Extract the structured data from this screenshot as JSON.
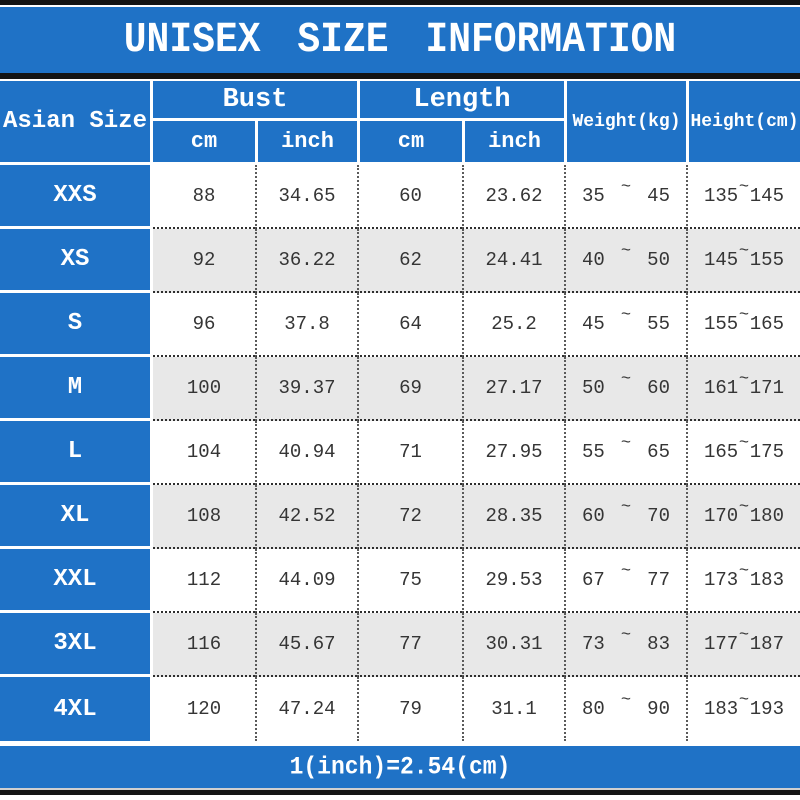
{
  "title": "UNISEX SIZE INFORMATION",
  "footer": {
    "note": "1(inch)=2.54(cm)"
  },
  "colors": {
    "blue": "#1f72c6",
    "alt_row": "#e8e8e8",
    "bar": "#141414",
    "text": "#353535",
    "white": "#ffffff"
  },
  "table": {
    "tilde": "~",
    "headers": {
      "size": "Asian Size",
      "bust": "Bust",
      "length": "Length",
      "weight": "Weight(kg)",
      "height": "Height(cm)",
      "cm": "cm",
      "inch": "inch"
    },
    "rows": [
      {
        "size": "XXS",
        "bust_cm": "88",
        "bust_in": "34.65",
        "length_cm": "60",
        "length_in": "23.62",
        "weight_min": "35",
        "weight_max": "45",
        "height_min": "135",
        "height_max": "145"
      },
      {
        "size": "XS",
        "bust_cm": "92",
        "bust_in": "36.22",
        "length_cm": "62",
        "length_in": "24.41",
        "weight_min": "40",
        "weight_max": "50",
        "height_min": "145",
        "height_max": "155"
      },
      {
        "size": "S",
        "bust_cm": "96",
        "bust_in": "37.8",
        "length_cm": "64",
        "length_in": "25.2",
        "weight_min": "45",
        "weight_max": "55",
        "height_min": "155",
        "height_max": "165"
      },
      {
        "size": "M",
        "bust_cm": "100",
        "bust_in": "39.37",
        "length_cm": "69",
        "length_in": "27.17",
        "weight_min": "50",
        "weight_max": "60",
        "height_min": "161",
        "height_max": "171"
      },
      {
        "size": "L",
        "bust_cm": "104",
        "bust_in": "40.94",
        "length_cm": "71",
        "length_in": "27.95",
        "weight_min": "55",
        "weight_max": "65",
        "height_min": "165",
        "height_max": "175"
      },
      {
        "size": "XL",
        "bust_cm": "108",
        "bust_in": "42.52",
        "length_cm": "72",
        "length_in": "28.35",
        "weight_min": "60",
        "weight_max": "70",
        "height_min": "170",
        "height_max": "180"
      },
      {
        "size": "XXL",
        "bust_cm": "112",
        "bust_in": "44.09",
        "length_cm": "75",
        "length_in": "29.53",
        "weight_min": "67",
        "weight_max": "77",
        "height_min": "173",
        "height_max": "183"
      },
      {
        "size": "3XL",
        "bust_cm": "116",
        "bust_in": "45.67",
        "length_cm": "77",
        "length_in": "30.31",
        "weight_min": "73",
        "weight_max": "83",
        "height_min": "177",
        "height_max": "187"
      },
      {
        "size": "4XL",
        "bust_cm": "120",
        "bust_in": "47.24",
        "length_cm": "79",
        "length_in": "31.1",
        "weight_min": "80",
        "weight_max": "90",
        "height_min": "183",
        "height_max": "193"
      }
    ]
  },
  "chart_data": {
    "type": "table",
    "title": "UNISEX SIZE INFORMATION",
    "columns": [
      "Asian Size",
      "Bust cm",
      "Bust inch",
      "Length cm",
      "Length inch",
      "Weight(kg)",
      "Height(cm)"
    ],
    "rows": [
      [
        "XXS",
        88,
        34.65,
        60,
        23.62,
        "35~45",
        "135~145"
      ],
      [
        "XS",
        92,
        36.22,
        62,
        24.41,
        "40~50",
        "145~155"
      ],
      [
        "S",
        96,
        37.8,
        64,
        25.2,
        "45~55",
        "155~165"
      ],
      [
        "M",
        100,
        39.37,
        69,
        27.17,
        "50~60",
        "161~171"
      ],
      [
        "L",
        104,
        40.94,
        71,
        27.95,
        "55~65",
        "165~175"
      ],
      [
        "XL",
        108,
        42.52,
        72,
        28.35,
        "60~70",
        "170~180"
      ],
      [
        "XXL",
        112,
        44.09,
        75,
        29.53,
        "67~77",
        "173~183"
      ],
      [
        "3XL",
        116,
        45.67,
        77,
        30.31,
        "73~83",
        "177~187"
      ],
      [
        "4XL",
        120,
        47.24,
        79,
        31.1,
        "80~90",
        "183~193"
      ]
    ],
    "note": "1(inch)=2.54(cm)"
  }
}
